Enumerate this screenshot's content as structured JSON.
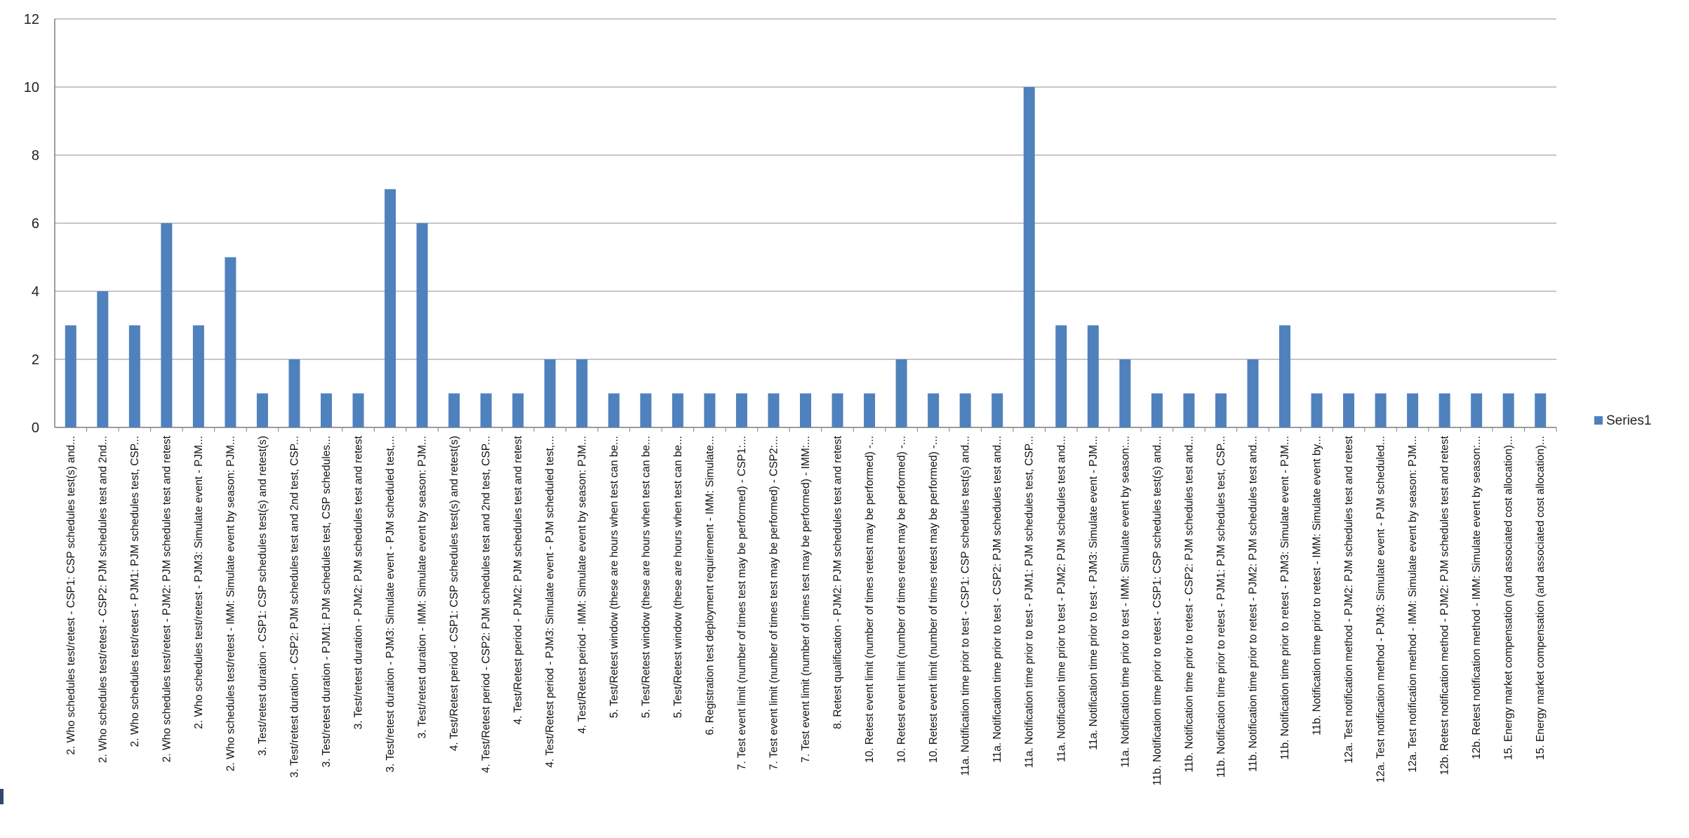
{
  "chart_data": {
    "type": "bar",
    "categories": [
      "2.  Who schedules test/retest - CSP1: CSP schedules test(s) and...",
      "2.  Who schedules test/retest - CSP2: PJM schedules test and 2nd...",
      "2.  Who schedules test/retest - PJM1: PJM schedules test, CSP...",
      "2.  Who schedules test/retest - PJM2: PJM schedules test and retest",
      "2.  Who schedules test/retest - PJM3: Simulate event - PJM...",
      "2.  Who schedules test/retest - IMM: Simulate event by season: PJM...",
      "3.  Test/retest duration - CSP1: CSP schedules test(s) and retest(s)",
      "3.  Test/retest duration - CSP2: PJM schedules test and 2nd test, CSP...",
      "3.  Test/retest duration - PJM1: PJM schedules test, CSP schedules...",
      "3.  Test/retest duration - PJM2: PJM schedules test and retest",
      "3.  Test/retest duration - PJM3: Simulate event - PJM scheduled test,...",
      "3.  Test/retest duration - IMM: Simulate event by season: PJM...",
      "4.  Test/Retest period - CSP1: CSP schedules test(s) and retest(s)",
      "4.  Test/Retest period - CSP2: PJM schedules test and 2nd test, CSP...",
      "4.  Test/Retest period - PJM2: PJM schedules test and retest",
      "4.  Test/Retest period - PJM3: Simulate event - PJM scheduled test,...",
      "4.  Test/Retest period - IMM: Simulate event by season: PJM...",
      "5.  Test/Retest window (these are hours when test can be...",
      "5.  Test/Retest window (these are hours when test can be...",
      "5.  Test/Retest window (these are hours when test can be...",
      "6.  Registration test deployment requirement - IMM:  Simulate...",
      "7.  Test event limit (number of times test may be performed) - CSP1:...",
      "7.  Test event limit (number of times test may be performed) - CSP2:...",
      "7.  Test event limit (number of times test may be performed) - IMM:...",
      "8.  Retest qualification - PJM2: PJM schedules test and retest",
      "10.  Retest event limit (number of times retest may be performed) -...",
      "10.  Retest event limit (number of times retest may be performed) -...",
      "10.  Retest event limit (number of times retest may be performed) -...",
      "11a. Notification time prior to test - CSP1: CSP schedules test(s) and...",
      "11a. Notification time prior to test - CSP2: PJM schedules test and...",
      "11a. Notification time prior to test - PJM1: PJM schedules test, CSP...",
      "11a. Notification time prior to test - PJM2: PJM schedules test and...",
      "11a. Notification time prior to test - PJM3: Simulate event - PJM...",
      "11a. Notification time prior to test - IMM:  Simulate event by season:...",
      "11b. Notification time prior to retest - CSP1: CSP schedules test(s) and...",
      "11b. Notification time prior to retest - CSP2: PJM schedules test and...",
      "11b. Notification time prior to retest - PJM1: PJM schedules test, CSP...",
      "11b. Notification time prior to retest - PJM2: PJM schedules test and...",
      "11b. Notification time prior to retest - PJM3: Simulate event - PJM...",
      "11b. Notification time prior to retest - IMM:  Simulate event by...",
      "12a. Test notification method - PJM2: PJM schedules test and retest",
      "12a. Test notification method - PJM3: Simulate event - PJM scheduled...",
      "12a. Test notification method - IMM:  Simulate event by season: PJM...",
      "12b. Retest notification method - PJM2: PJM schedules test and retest",
      "12b. Retest notification method - IMM:  Simulate event by season:...",
      "15.  Energy market compensation (and associated cost allocation)...",
      "15.  Energy market compensation (and associated cost allocation)..."
    ],
    "series": [
      {
        "name": "Series1",
        "color": "#4f81bd",
        "values": [
          3,
          4,
          3,
          6,
          3,
          5,
          1,
          2,
          1,
          1,
          7,
          6,
          1,
          1,
          1,
          2,
          2,
          1,
          1,
          1,
          1,
          1,
          1,
          1,
          1,
          1,
          2,
          1,
          1,
          1,
          10,
          3,
          3,
          2,
          1,
          1,
          1,
          2,
          3,
          1,
          1,
          1,
          1,
          1,
          1,
          1,
          1
        ]
      }
    ],
    "ylim": [
      0,
      12
    ],
    "yticks": [
      "0",
      "2",
      "4",
      "6",
      "8",
      "10",
      "12"
    ],
    "grid": true,
    "legend_position": "right"
  }
}
